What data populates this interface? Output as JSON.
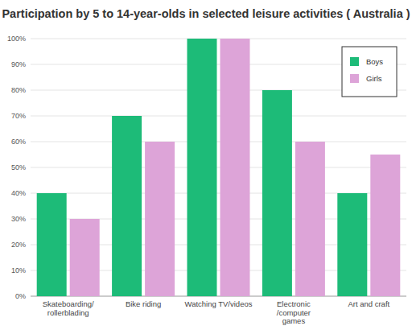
{
  "chart_data": {
    "type": "bar",
    "title": "Participation by 5 to 14-year-olds in selected leisure activities ( Australia )",
    "categories": [
      "Skateboarding/\nrollerblading",
      "Bike riding",
      "Watching TV/videos",
      "Electronic\n/computer\ngames",
      "Art and craft"
    ],
    "series": [
      {
        "name": "Boys",
        "color": "#1dbb78",
        "values": [
          40,
          70,
          100,
          80,
          40
        ]
      },
      {
        "name": "Girls",
        "color": "#dda4d8",
        "values": [
          30,
          60,
          100,
          60,
          55
        ]
      }
    ],
    "ylim": [
      0,
      100
    ],
    "yticks": [
      {
        "value": 0,
        "label": "0%"
      },
      {
        "value": 10,
        "label": "10%"
      },
      {
        "value": 20,
        "label": "20%"
      },
      {
        "value": 30,
        "label": "30%"
      },
      {
        "value": 40,
        "label": "40%"
      },
      {
        "value": 50,
        "label": "50%"
      },
      {
        "value": 60,
        "label": "60%"
      },
      {
        "value": 70,
        "label": "70%"
      },
      {
        "value": 80,
        "label": "80%"
      },
      {
        "value": 90,
        "label": "90%"
      },
      {
        "value": 100,
        "label": "100%"
      }
    ],
    "grid": true,
    "legend": "upper right"
  }
}
